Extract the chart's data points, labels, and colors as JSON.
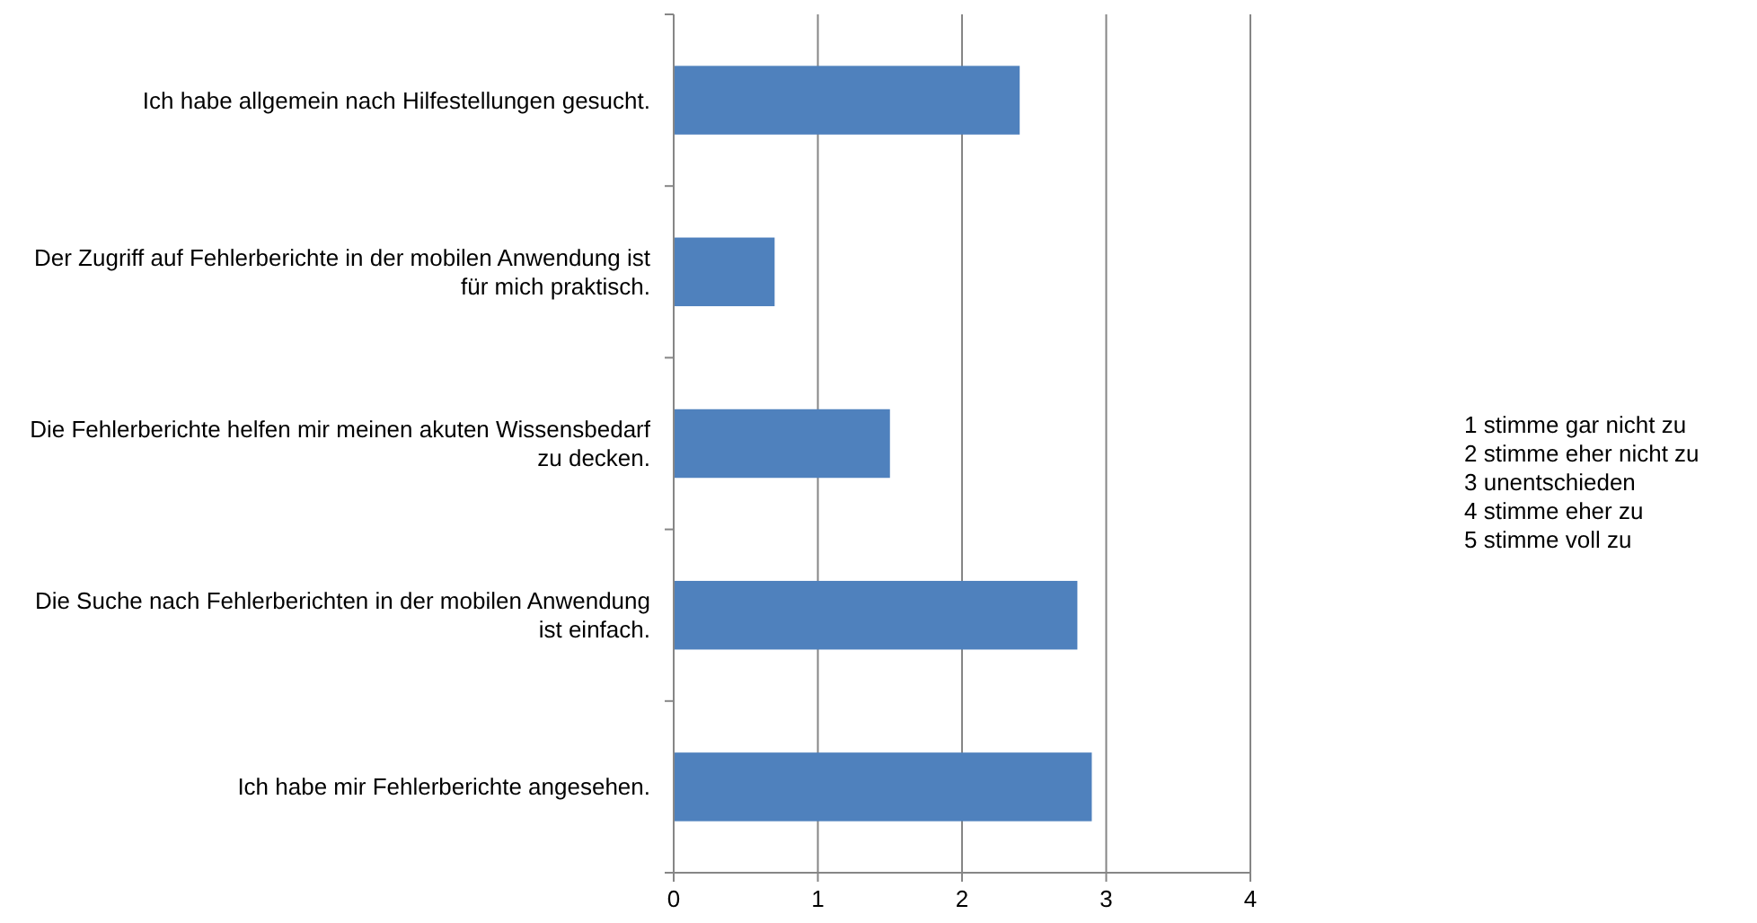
{
  "chart_data": {
    "type": "bar",
    "orientation": "horizontal",
    "categories": [
      "Ich habe allgemein nach Hilfestellungen gesucht.",
      "Der Zugriff auf Fehlerberichte in der mobilen Anwendung ist für mich praktisch.",
      "Die Fehlerberichte helfen mir meinen akuten Wissensbedarf zu decken.",
      "Die Suche nach Fehlerberichten in der mobilen Anwendung ist einfach.",
      "Ich habe mir Fehlerberichte angesehen."
    ],
    "values": [
      2.4,
      0.7,
      1.5,
      2.8,
      2.9
    ],
    "color": "#4f81bd",
    "xlim": [
      0,
      4
    ],
    "xticks": [
      0,
      1,
      2,
      3,
      4
    ],
    "grid": "x",
    "annotations": [
      "1 stimme gar nicht zu",
      "2 stimme eher nicht zu",
      "3 unentschieden",
      "4 stimme eher zu",
      "5 stimme voll zu"
    ]
  }
}
